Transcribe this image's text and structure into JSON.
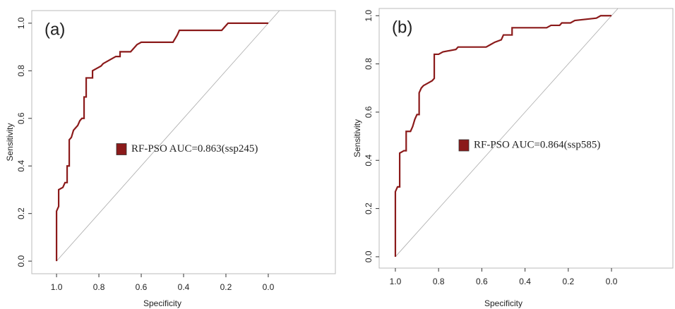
{
  "chart_data": [
    {
      "type": "line",
      "title": "(a)",
      "x_label": "Specificity",
      "y_label": "Sensitivity",
      "x": [
        1.0,
        1.0,
        0.99,
        0.99,
        0.97,
        0.96,
        0.95,
        0.95,
        0.94,
        0.94,
        0.93,
        0.92,
        0.91,
        0.9,
        0.89,
        0.88,
        0.87,
        0.87,
        0.86,
        0.86,
        0.83,
        0.83,
        0.81,
        0.79,
        0.78,
        0.76,
        0.74,
        0.72,
        0.7,
        0.7,
        0.65,
        0.62,
        0.6,
        0.45,
        0.43,
        0.42,
        0.22,
        0.2,
        0.19,
        0.0
      ],
      "series": [
        {
          "name": "RF-PSO AUC=0.863(ssp245)",
          "color": "#8b1a1a",
          "values": [
            0.0,
            0.21,
            0.23,
            0.3,
            0.31,
            0.33,
            0.33,
            0.4,
            0.4,
            0.51,
            0.52,
            0.55,
            0.56,
            0.57,
            0.59,
            0.6,
            0.6,
            0.69,
            0.69,
            0.77,
            0.77,
            0.8,
            0.81,
            0.82,
            0.83,
            0.84,
            0.85,
            0.86,
            0.86,
            0.88,
            0.88,
            0.91,
            0.92,
            0.92,
            0.95,
            0.97,
            0.97,
            0.99,
            1.0,
            1.0
          ]
        }
      ],
      "xlim": [
        1.117,
        -0.317
      ],
      "ylim": [
        -0.053,
        1.053
      ],
      "xticks": [
        {
          "value": 1,
          "label": "1.0"
        },
        0.8,
        0.6,
        0.4,
        0.2,
        {
          "value": 0,
          "label": "0.0"
        }
      ],
      "yticks": [
        {
          "value": 0,
          "label": "0.0"
        },
        0.2,
        0.4,
        0.6,
        0.8,
        {
          "value": 1,
          "label": "1.0"
        }
      ],
      "legend": "center"
    },
    {
      "type": "line",
      "title": "(b)",
      "x_label": "Specificity",
      "y_label": "Sensitivity",
      "x": [
        1.0,
        1.0,
        0.99,
        0.98,
        0.98,
        0.96,
        0.95,
        0.95,
        0.93,
        0.92,
        0.91,
        0.9,
        0.89,
        0.89,
        0.88,
        0.87,
        0.85,
        0.83,
        0.82,
        0.82,
        0.8,
        0.78,
        0.72,
        0.71,
        0.58,
        0.56,
        0.54,
        0.51,
        0.5,
        0.46,
        0.46,
        0.3,
        0.28,
        0.24,
        0.23,
        0.19,
        0.17,
        0.07,
        0.05,
        0.0
      ],
      "series": [
        {
          "name": "RF-PSO AUC=0.864(ssp585)",
          "color": "#8b1a1a",
          "values": [
            0.0,
            0.27,
            0.29,
            0.29,
            0.43,
            0.44,
            0.44,
            0.52,
            0.52,
            0.54,
            0.57,
            0.59,
            0.59,
            0.68,
            0.7,
            0.71,
            0.72,
            0.73,
            0.74,
            0.84,
            0.84,
            0.85,
            0.86,
            0.87,
            0.87,
            0.88,
            0.89,
            0.9,
            0.92,
            0.92,
            0.95,
            0.95,
            0.96,
            0.96,
            0.97,
            0.97,
            0.98,
            0.99,
            1.0,
            1.0
          ]
        }
      ],
      "xlim": [
        1.075,
        -0.284
      ],
      "ylim": [
        -0.047,
        1.03
      ],
      "xticks": [
        {
          "value": 1,
          "label": "1.0"
        },
        0.8,
        0.6,
        0.4,
        0.2,
        {
          "value": 0,
          "label": "0.0"
        }
      ],
      "yticks": [
        {
          "value": 0,
          "label": "0.0"
        },
        0.2,
        0.4,
        0.6,
        0.8,
        {
          "value": 1,
          "label": "1.0"
        }
      ],
      "legend": "center"
    }
  ]
}
